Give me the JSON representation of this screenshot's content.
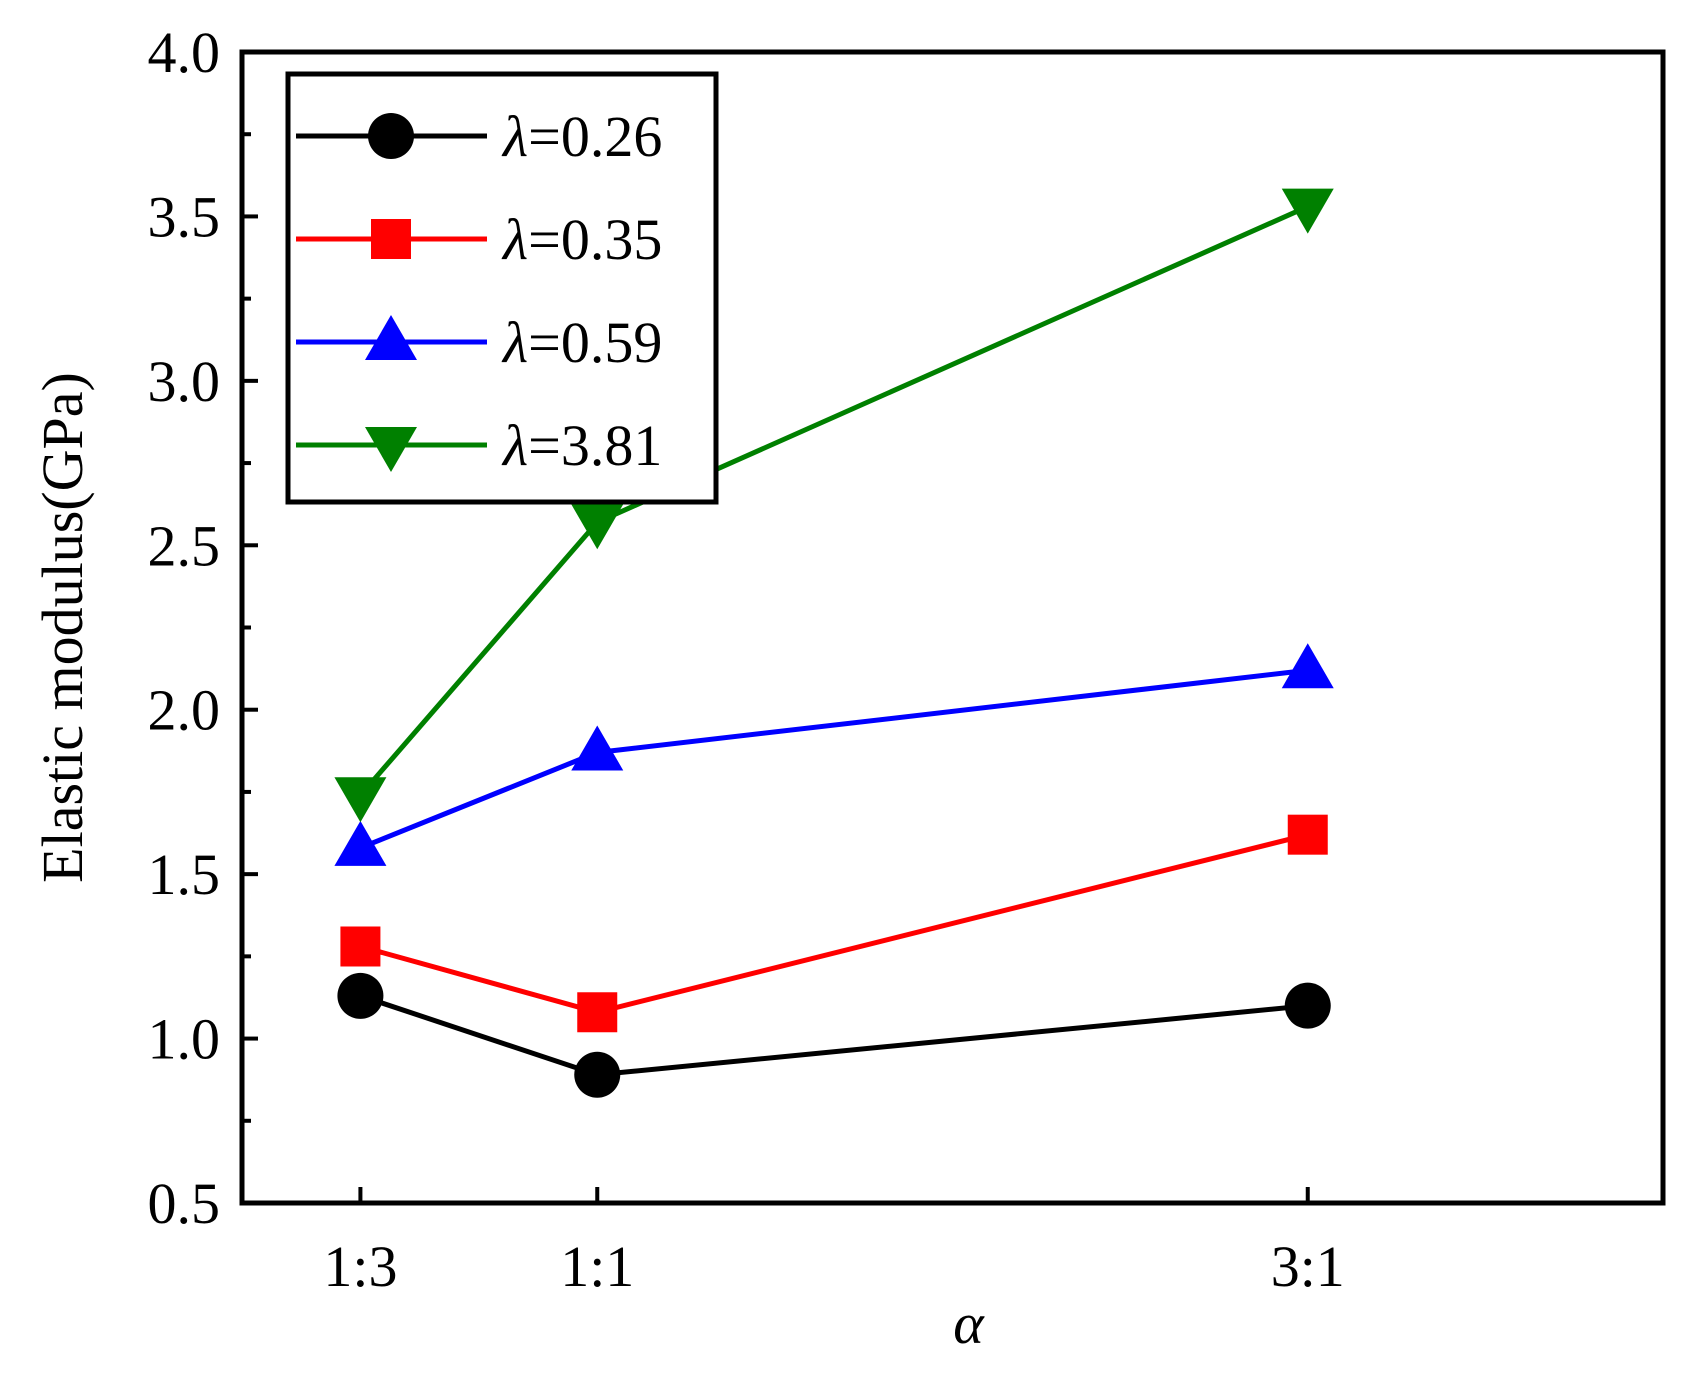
{
  "chart_data": {
    "type": "line",
    "categories": [
      "1:3",
      "1:1",
      "3:1"
    ],
    "x_values": [
      1,
      2,
      5
    ],
    "xlim": [
      0.5,
      6.5
    ],
    "ylim": [
      0.5,
      4.0
    ],
    "yticks": [
      0.5,
      1.0,
      1.5,
      2.0,
      2.5,
      3.0,
      3.5,
      4.0
    ],
    "ytick_labels": [
      "0.5",
      "1.0",
      "1.5",
      "2.0",
      "2.5",
      "3.0",
      "3.5",
      "4.0"
    ],
    "xlabel": "α",
    "ylabel": "Elastic modulus(GPa)",
    "legend_position": "top-left",
    "grid": false,
    "series": [
      {
        "name": "λ=0.26",
        "symbol": "λ",
        "value_text": "=0.26",
        "color": "#000000",
        "marker": "circle",
        "values": [
          1.13,
          0.89,
          1.1
        ]
      },
      {
        "name": "λ=0.35",
        "symbol": "λ",
        "value_text": "=0.35",
        "color": "#ff0000",
        "marker": "square",
        "values": [
          1.28,
          1.08,
          1.62
        ]
      },
      {
        "name": "λ=0.59",
        "symbol": "λ",
        "value_text": "=0.59",
        "color": "#0000ff",
        "marker": "triangle-up",
        "values": [
          1.58,
          1.87,
          2.12
        ]
      },
      {
        "name": "λ=3.81",
        "symbol": "λ",
        "value_text": "=3.81",
        "color": "#008000",
        "marker": "triangle-down",
        "values": [
          1.74,
          2.57,
          3.53
        ]
      }
    ]
  }
}
